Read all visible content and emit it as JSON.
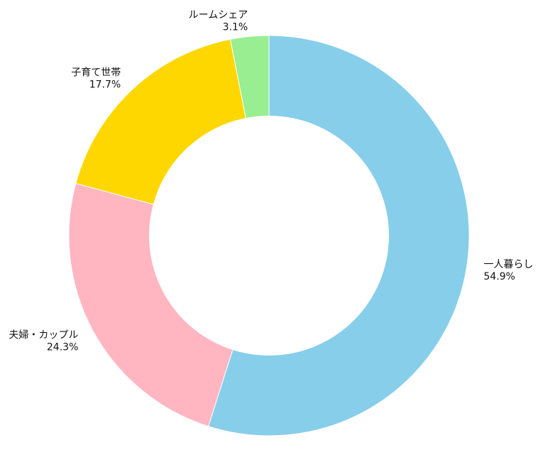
{
  "chart_data": {
    "type": "pie",
    "donut": true,
    "title": "",
    "slices": [
      {
        "label": "一人暮らし",
        "value": 54.9,
        "percent_label": "54.9%",
        "color": "#87CEEB"
      },
      {
        "label": "夫婦・カップル",
        "value": 24.3,
        "percent_label": "24.3%",
        "color": "#FFB6C1"
      },
      {
        "label": "子育て世帯",
        "value": 17.7,
        "percent_label": "17.7%",
        "color": "#FFD700"
      },
      {
        "label": "ルームシェア",
        "value": 3.1,
        "percent_label": "3.1%",
        "color": "#98EE90"
      }
    ],
    "legend": "none",
    "grid": false
  }
}
